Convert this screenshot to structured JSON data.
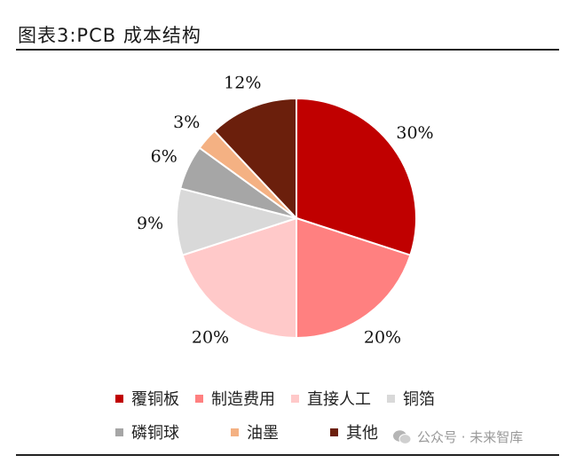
{
  "title": "图表3:PCB 成本结构",
  "chart_data": {
    "type": "pie",
    "title": "图表3:PCB 成本结构",
    "slices": [
      {
        "name": "覆铜板",
        "value": 30,
        "label": "30%",
        "color": "#c00000"
      },
      {
        "name": "制造费用",
        "value": 20,
        "label": "20%",
        "color": "#ff8080"
      },
      {
        "name": "直接人工",
        "value": 20,
        "label": "20%",
        "color": "#ffc9c9"
      },
      {
        "name": "铜箔",
        "value": 9,
        "label": "9%",
        "color": "#d9d9d9"
      },
      {
        "name": "磷铜球",
        "value": 6,
        "label": "6%",
        "color": "#a6a6a6"
      },
      {
        "name": "油墨",
        "value": 3,
        "label": "3%",
        "color": "#f4b183"
      },
      {
        "name": "其他",
        "value": 12,
        "label": "12%",
        "color": "#6b1f0c"
      }
    ],
    "start": "12 o'clock",
    "direction": "clockwise",
    "legend_position": "bottom"
  },
  "watermark": "公众号 · 未来智库"
}
